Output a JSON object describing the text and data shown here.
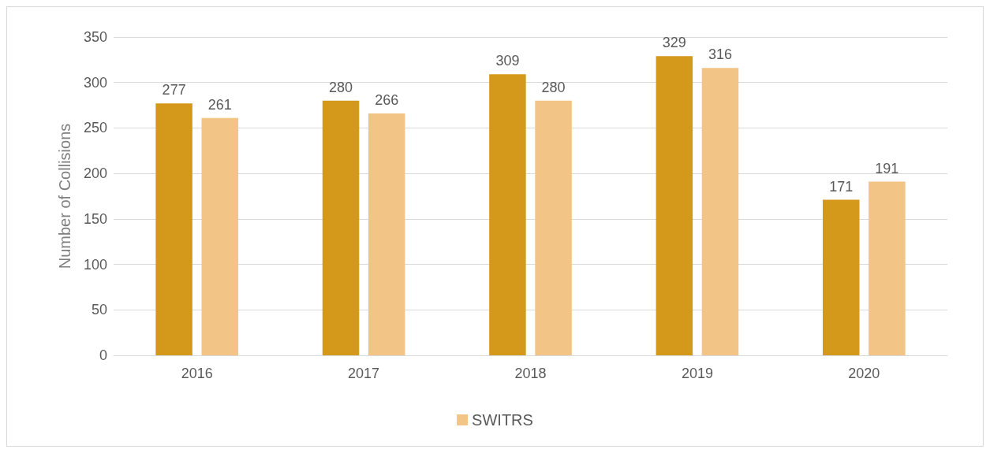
{
  "chart_data": {
    "type": "bar",
    "ylabel": "Number of Collisions",
    "categories": [
      "2016",
      "2017",
      "2018",
      "2019",
      "2020"
    ],
    "series": [
      {
        "color": "#d4991a",
        "values": [
          277,
          280,
          309,
          329,
          171
        ]
      },
      {
        "name": "SWITRS",
        "color": "#f2c486",
        "values": [
          261,
          266,
          280,
          316,
          191
        ]
      }
    ],
    "ylim": [
      0,
      350
    ],
    "yticks": [
      0,
      50,
      100,
      150,
      200,
      250,
      300,
      350
    ],
    "grid": "y",
    "legend": "bottom",
    "data_labels": true
  }
}
